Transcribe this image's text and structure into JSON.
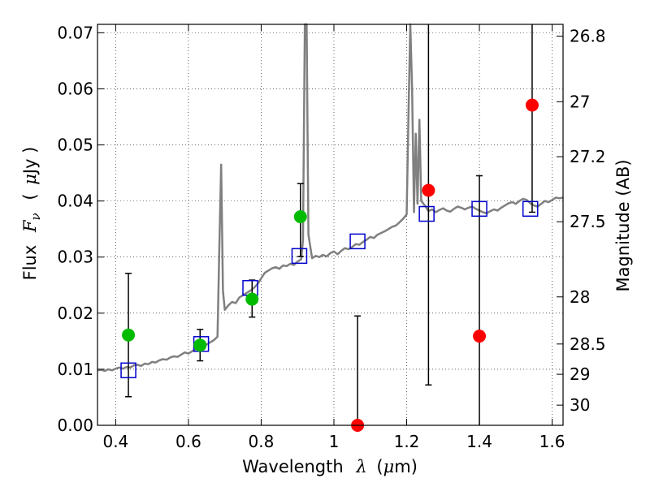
{
  "chart_data": {
    "type": "scatter",
    "title": "",
    "xlabel": "Wavelength",
    "xlabel_symbol": "λ",
    "xlabel_unit_open": "(",
    "xlabel_unit_mu": "μ",
    "xlabel_unit_rest": "m)",
    "ylabel": "Flux",
    "ylabel_symbol": "F",
    "ylabel_subscript": "ν",
    "ylabel_unit_open": "(",
    "ylabel_unit_mu": "μ",
    "ylabel_unit_rest": "Jy )",
    "y2label": "Magnitude (AB)",
    "xlim": [
      0.35,
      1.63
    ],
    "ylim": [
      0.0,
      0.0715
    ],
    "grid": true,
    "x_ticks": [
      0.4,
      0.6,
      0.8,
      1.0,
      1.2,
      1.4,
      1.6
    ],
    "x_tick_labels": [
      "0.4",
      "0.6",
      "0.8",
      "1",
      "1.2",
      "1.4",
      "1.6"
    ],
    "y_ticks": [
      0.0,
      0.01,
      0.02,
      0.03,
      0.04,
      0.05,
      0.06,
      0.07
    ],
    "y_tick_labels": [
      "0.00",
      "0.01",
      "0.02",
      "0.03",
      "0.04",
      "0.05",
      "0.06",
      "0.07"
    ],
    "y2_ticks": [
      {
        "label": "26.8",
        "flux": 0.0694
      },
      {
        "label": "27",
        "flux": 0.0577
      },
      {
        "label": "27.2",
        "flux": 0.0479
      },
      {
        "label": "27.5",
        "flux": 0.0363
      },
      {
        "label": "28",
        "flux": 0.0229
      },
      {
        "label": "28.5",
        "flux": 0.0145
      },
      {
        "label": "29",
        "flux": 0.0091
      },
      {
        "label": "30",
        "flux": 0.0036
      }
    ],
    "colors": {
      "spectrum": "#808080",
      "model_squares": "#0000cc",
      "detected": "#00bb00",
      "nondetected": "#ff0000",
      "errorbar": "#000000"
    },
    "series": [
      {
        "kind": "line",
        "points": [
          [
            0.35,
            0.0098
          ],
          [
            0.36,
            0.0099
          ],
          [
            0.37,
            0.0097
          ],
          [
            0.38,
            0.01
          ],
          [
            0.39,
            0.0098
          ],
          [
            0.4,
            0.0101
          ],
          [
            0.41,
            0.0103
          ],
          [
            0.42,
            0.0101
          ],
          [
            0.43,
            0.0104
          ],
          [
            0.44,
            0.0103
          ],
          [
            0.45,
            0.0107
          ],
          [
            0.46,
            0.0108
          ],
          [
            0.47,
            0.0106
          ],
          [
            0.48,
            0.011
          ],
          [
            0.49,
            0.0109
          ],
          [
            0.5,
            0.0113
          ],
          [
            0.51,
            0.0112
          ],
          [
            0.52,
            0.0116
          ],
          [
            0.53,
            0.0118
          ],
          [
            0.54,
            0.0117
          ],
          [
            0.55,
            0.0121
          ],
          [
            0.56,
            0.0123
          ],
          [
            0.57,
            0.0122
          ],
          [
            0.58,
            0.0126
          ],
          [
            0.59,
            0.013
          ],
          [
            0.6,
            0.0128
          ],
          [
            0.61,
            0.0132
          ],
          [
            0.62,
            0.0136
          ],
          [
            0.63,
            0.0134
          ],
          [
            0.64,
            0.0139
          ],
          [
            0.65,
            0.0144
          ],
          [
            0.66,
            0.0148
          ],
          [
            0.67,
            0.0152
          ],
          [
            0.68,
            0.0158
          ],
          [
            0.685,
            0.032
          ],
          [
            0.69,
            0.0465
          ],
          [
            0.695,
            0.024
          ],
          [
            0.7,
            0.0206
          ],
          [
            0.71,
            0.0214
          ],
          [
            0.72,
            0.022
          ],
          [
            0.73,
            0.0218
          ],
          [
            0.74,
            0.0228
          ],
          [
            0.75,
            0.0232
          ],
          [
            0.76,
            0.0236
          ],
          [
            0.77,
            0.024
          ],
          [
            0.78,
            0.0245
          ],
          [
            0.79,
            0.0252
          ],
          [
            0.8,
            0.0262
          ],
          [
            0.81,
            0.0272
          ],
          [
            0.82,
            0.0276
          ],
          [
            0.83,
            0.028
          ],
          [
            0.84,
            0.0282
          ],
          [
            0.85,
            0.0279
          ],
          [
            0.86,
            0.0285
          ],
          [
            0.87,
            0.0284
          ],
          [
            0.88,
            0.0288
          ],
          [
            0.89,
            0.0286
          ],
          [
            0.9,
            0.0292
          ],
          [
            0.91,
            0.0296
          ],
          [
            0.915,
            0.033
          ],
          [
            0.92,
            0.0715
          ],
          [
            0.925,
            0.0715
          ],
          [
            0.93,
            0.034
          ],
          [
            0.94,
            0.0298
          ],
          [
            0.95,
            0.0302
          ],
          [
            0.96,
            0.03
          ],
          [
            0.97,
            0.0304
          ],
          [
            0.98,
            0.0301
          ],
          [
            0.99,
            0.0307
          ],
          [
            1.0,
            0.031
          ],
          [
            1.01,
            0.0305
          ],
          [
            1.02,
            0.0311
          ],
          [
            1.03,
            0.0316
          ],
          [
            1.04,
            0.0314
          ],
          [
            1.05,
            0.0318
          ],
          [
            1.06,
            0.0323
          ],
          [
            1.07,
            0.0322
          ],
          [
            1.08,
            0.0327
          ],
          [
            1.09,
            0.0331
          ],
          [
            1.1,
            0.0336
          ],
          [
            1.11,
            0.0334
          ],
          [
            1.12,
            0.034
          ],
          [
            1.13,
            0.0343
          ],
          [
            1.14,
            0.0346
          ],
          [
            1.15,
            0.035
          ],
          [
            1.16,
            0.0354
          ],
          [
            1.17,
            0.0356
          ],
          [
            1.18,
            0.0362
          ],
          [
            1.19,
            0.0368
          ],
          [
            1.2,
            0.0376
          ],
          [
            1.205,
            0.055
          ],
          [
            1.21,
            0.0715
          ],
          [
            1.215,
            0.06
          ],
          [
            1.22,
            0.038
          ],
          [
            1.225,
            0.052
          ],
          [
            1.23,
            0.0395
          ],
          [
            1.235,
            0.0545
          ],
          [
            1.24,
            0.04
          ],
          [
            1.25,
            0.0392
          ],
          [
            1.26,
            0.0382
          ],
          [
            1.27,
            0.0385
          ],
          [
            1.28,
            0.038
          ],
          [
            1.29,
            0.0384
          ],
          [
            1.3,
            0.0387
          ],
          [
            1.31,
            0.0383
          ],
          [
            1.32,
            0.0381
          ],
          [
            1.33,
            0.0386
          ],
          [
            1.34,
            0.039
          ],
          [
            1.35,
            0.0388
          ],
          [
            1.36,
            0.0385
          ],
          [
            1.37,
            0.0388
          ],
          [
            1.38,
            0.039
          ],
          [
            1.39,
            0.0386
          ],
          [
            1.4,
            0.0383
          ],
          [
            1.41,
            0.038
          ],
          [
            1.42,
            0.0378
          ],
          [
            1.43,
            0.0382
          ],
          [
            1.44,
            0.0385
          ],
          [
            1.45,
            0.0383
          ],
          [
            1.46,
            0.0388
          ],
          [
            1.47,
            0.0392
          ],
          [
            1.48,
            0.0396
          ],
          [
            1.49,
            0.0398
          ],
          [
            1.5,
            0.0395
          ],
          [
            1.51,
            0.04
          ],
          [
            1.52,
            0.0404
          ],
          [
            1.53,
            0.0402
          ],
          [
            1.54,
            0.0396
          ],
          [
            1.55,
            0.0392
          ],
          [
            1.56,
            0.039
          ],
          [
            1.57,
            0.0395
          ],
          [
            1.58,
            0.04
          ],
          [
            1.59,
            0.0398
          ],
          [
            1.6,
            0.0402
          ],
          [
            1.61,
            0.0406
          ],
          [
            1.62,
            0.0405
          ],
          [
            1.63,
            0.0406
          ]
        ]
      },
      {
        "kind": "squares",
        "points": [
          [
            0.435,
            0.0098
          ],
          [
            0.635,
            0.0145
          ],
          [
            0.77,
            0.0245
          ],
          [
            0.905,
            0.0302
          ],
          [
            1.065,
            0.0328
          ],
          [
            1.255,
            0.0377
          ],
          [
            1.4,
            0.0386
          ],
          [
            1.54,
            0.0386
          ]
        ]
      },
      {
        "kind": "detections",
        "points": [
          {
            "x": 0.435,
            "y": 0.0161,
            "ylo": 0.0051,
            "yhi": 0.0271
          },
          {
            "x": 0.632,
            "y": 0.0143,
            "ylo": 0.0115,
            "yhi": 0.0171
          },
          {
            "x": 0.775,
            "y": 0.0225,
            "ylo": 0.0193,
            "yhi": 0.0259
          },
          {
            "x": 0.908,
            "y": 0.0372,
            "ylo": 0.0301,
            "yhi": 0.0431
          }
        ]
      },
      {
        "kind": "nondetections",
        "points": [
          {
            "x": 1.065,
            "y": 0.0,
            "ylo": 0.0,
            "yhi": 0.0195
          },
          {
            "x": 1.26,
            "y": 0.0419,
            "ylo": 0.0072,
            "yhi": 0.0715
          },
          {
            "x": 1.4,
            "y": 0.0159,
            "ylo": 0.0,
            "yhi": 0.0445
          },
          {
            "x": 1.545,
            "y": 0.0571,
            "ylo": 0.038,
            "yhi": 0.0715
          }
        ]
      }
    ]
  }
}
